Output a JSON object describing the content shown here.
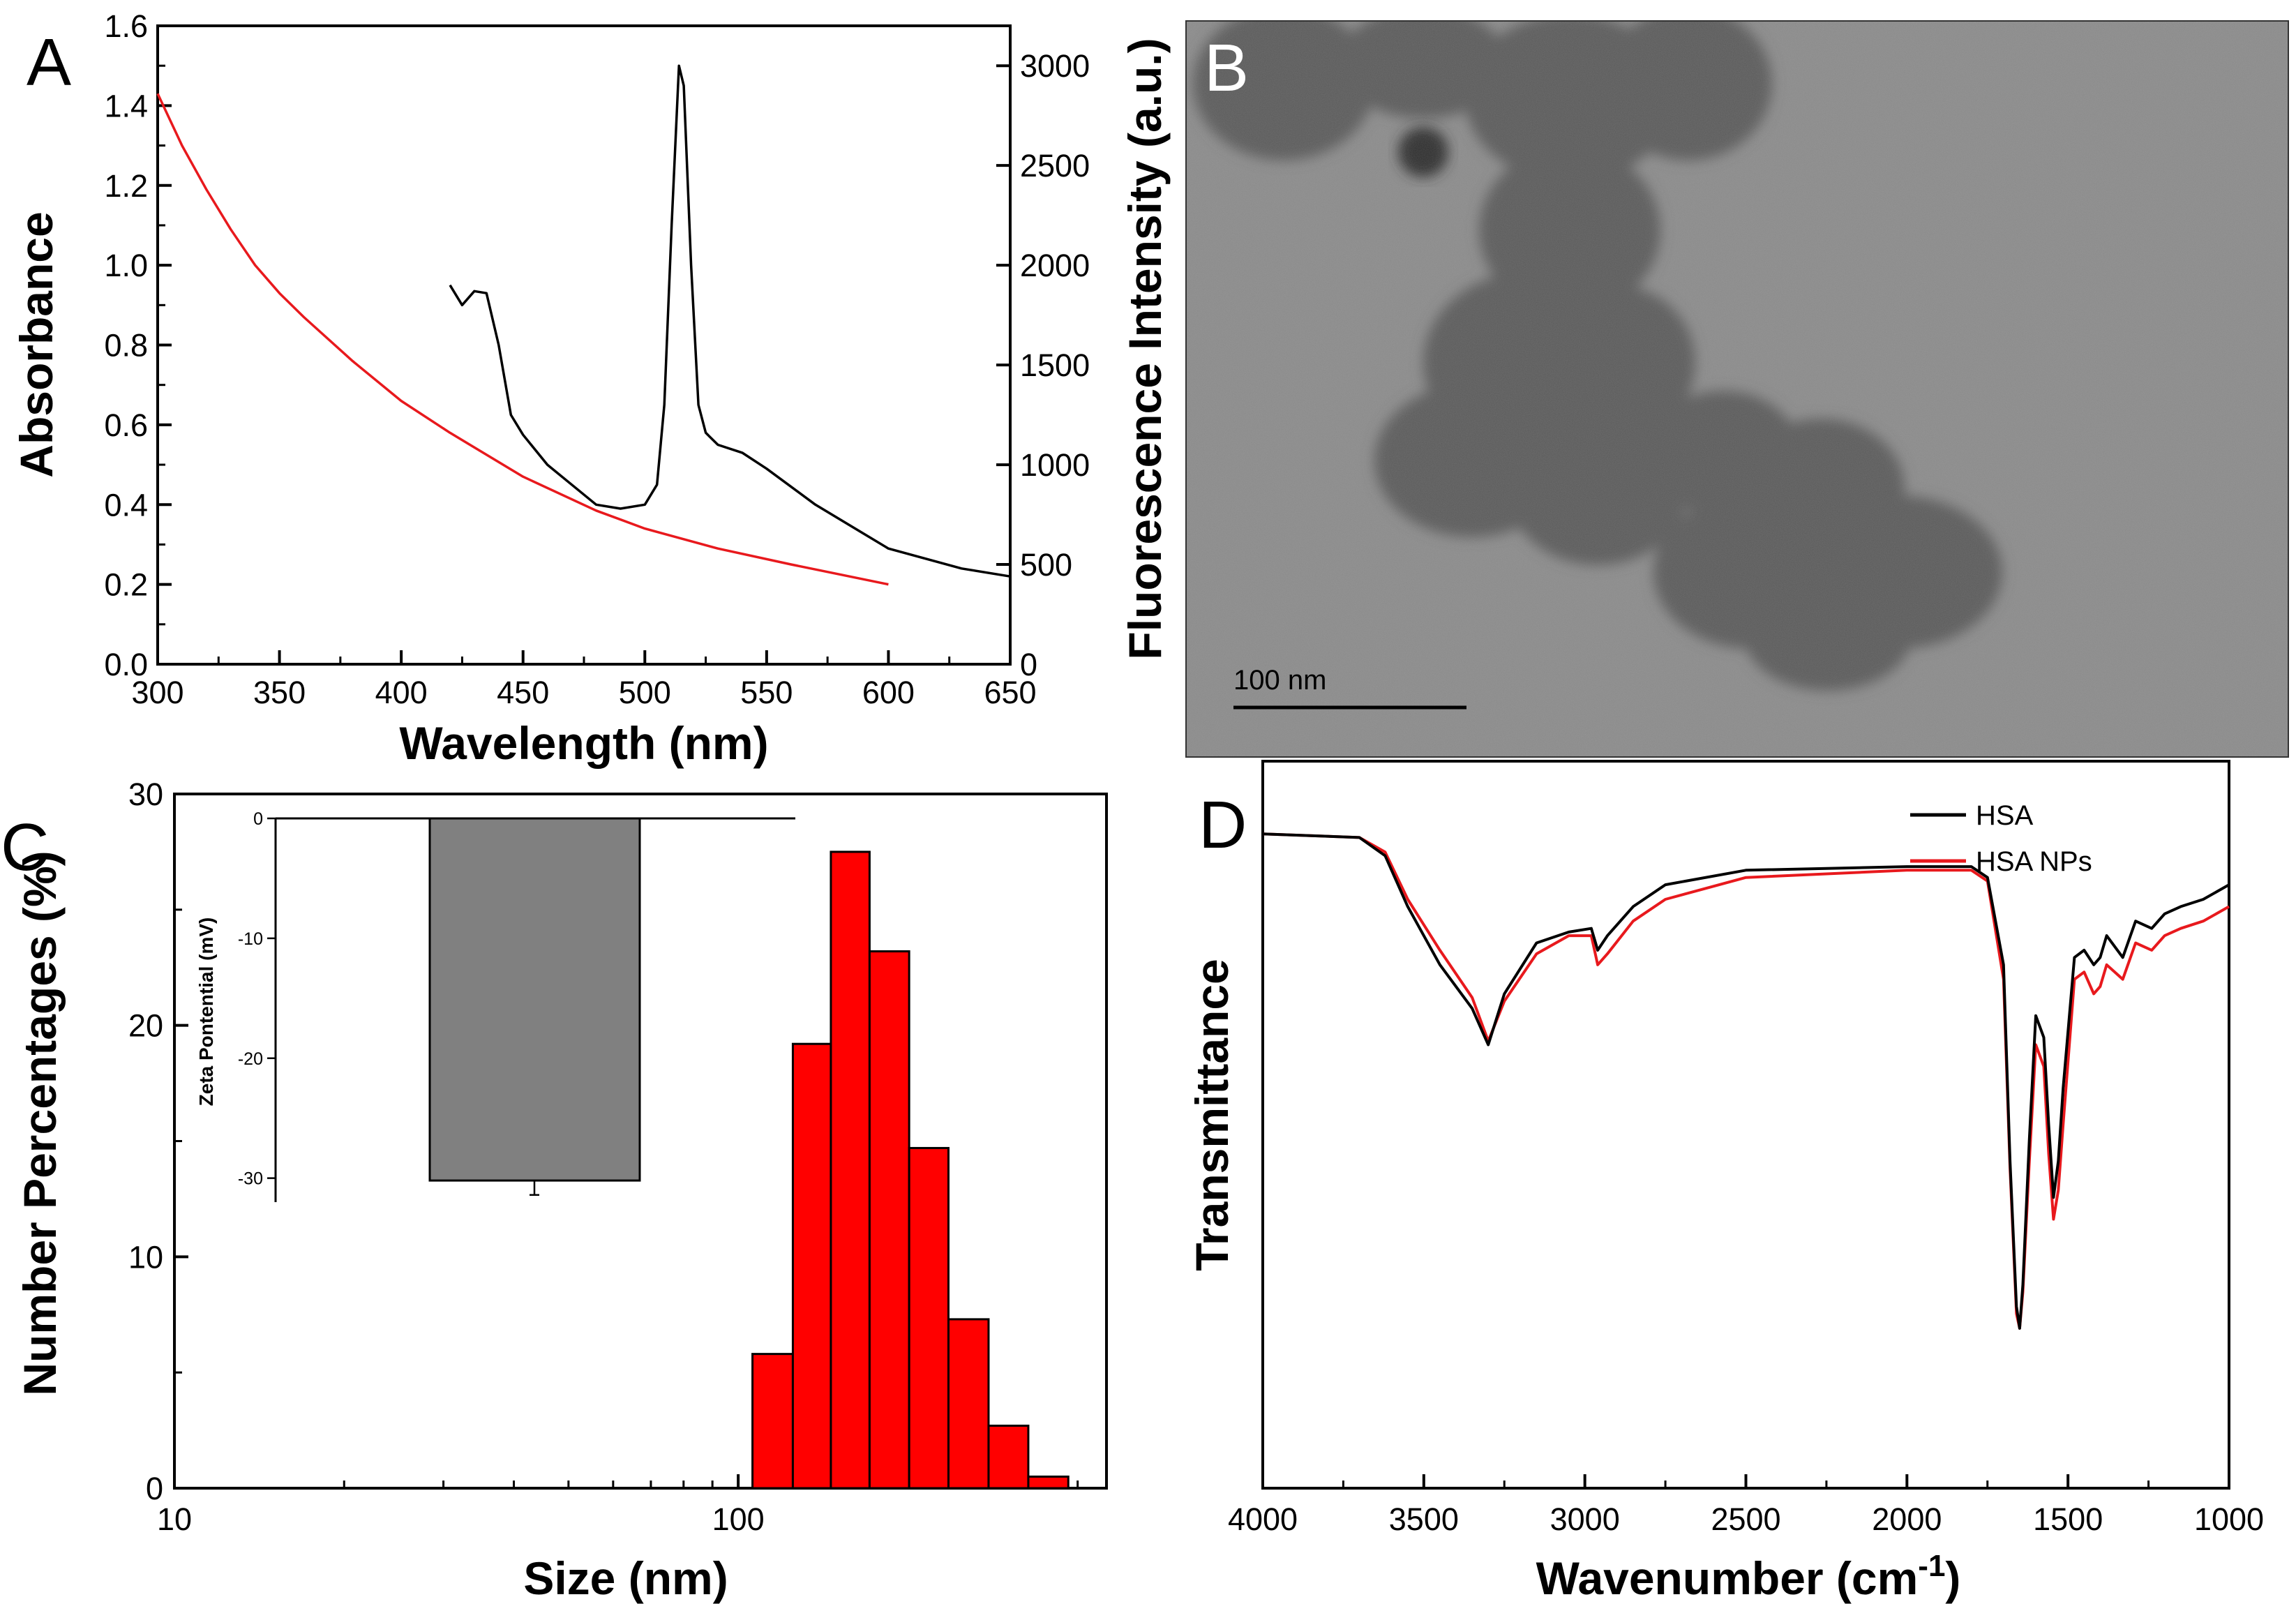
{
  "figure": {
    "panel_labels": {
      "a": "A",
      "b": "B",
      "c": "C",
      "d": "D"
    },
    "tem_scale_label": "100 nm"
  },
  "chart_data": [
    {
      "panel": "A",
      "type": "line",
      "xlabel": "Wavelength (nm)",
      "ylabel": "Absorbance",
      "y2label": "Fluorescence Intensity (a.u.)",
      "xlim": [
        300,
        650
      ],
      "ylim": [
        0,
        1.6
      ],
      "y2lim": [
        0,
        3200
      ],
      "xticks": [
        "300",
        "350",
        "400",
        "450",
        "500",
        "550",
        "600",
        "650"
      ],
      "yticks": [
        "0.0",
        "0.2",
        "0.4",
        "0.6",
        "0.8",
        "1.0",
        "1.2",
        "1.4",
        "1.6"
      ],
      "y2ticks": [
        "0",
        "500",
        "1000",
        "1500",
        "2000",
        "2500",
        "3000"
      ],
      "series": [
        {
          "name": "Absorbance",
          "axis": "left",
          "color": "#e8191d",
          "x": [
            300,
            310,
            320,
            330,
            340,
            350,
            360,
            380,
            400,
            420,
            450,
            480,
            500,
            530,
            560,
            600
          ],
          "y": [
            1.43,
            1.3,
            1.19,
            1.09,
            1.0,
            0.93,
            0.87,
            0.76,
            0.66,
            0.58,
            0.47,
            0.385,
            0.34,
            0.29,
            0.25,
            0.2
          ]
        },
        {
          "name": "Fluorescence",
          "axis": "right",
          "color": "#000000",
          "x": [
            420,
            425,
            430,
            435,
            440,
            445,
            450,
            460,
            470,
            480,
            490,
            500,
            505,
            508,
            511,
            514,
            516,
            519,
            522,
            525,
            530,
            540,
            550,
            570,
            600,
            630,
            650
          ],
          "y": [
            1900,
            1800,
            1870,
            1860,
            1600,
            1250,
            1150,
            1000,
            900,
            800,
            780,
            800,
            900,
            1300,
            2200,
            3000,
            2900,
            2000,
            1300,
            1160,
            1100,
            1060,
            980,
            800,
            580,
            480,
            440
          ]
        }
      ]
    },
    {
      "panel": "C",
      "type": "bar",
      "xlabel": "Size (nm)",
      "ylabel": "Number Percentages (%)",
      "xscale": "log",
      "xlim": [
        10,
        450
      ],
      "ylim": [
        0,
        30
      ],
      "xticks": [
        "10",
        "100"
      ],
      "yticks": [
        "0",
        "10",
        "20",
        "30"
      ],
      "bar_color": "#ff0000",
      "bins": [
        {
          "x0": 106,
          "x1": 125,
          "value": 5.8
        },
        {
          "x0": 125,
          "x1": 146,
          "value": 19.2
        },
        {
          "x0": 146,
          "x1": 171,
          "value": 27.5
        },
        {
          "x0": 171,
          "x1": 201,
          "value": 23.2
        },
        {
          "x0": 201,
          "x1": 236,
          "value": 14.7
        },
        {
          "x0": 236,
          "x1": 278,
          "value": 7.3
        },
        {
          "x0": 278,
          "x1": 327,
          "value": 2.7
        },
        {
          "x0": 327,
          "x1": 385,
          "value": 0.5
        }
      ],
      "inset": {
        "type": "bar",
        "ylabel": "Zeta Pontential (mV)",
        "ylim": [
          -32,
          0
        ],
        "yticks": [
          "0",
          "-10",
          "-20",
          "-30"
        ],
        "value": -30.2,
        "error": 1.2,
        "bar_color": "#808080"
      }
    },
    {
      "panel": "D",
      "type": "line",
      "xlabel": "Wavenumber (cm",
      "xlabel_sup": "-1",
      "xlabel_tail": ")",
      "ylabel": "Transmittance",
      "xlim": [
        4000,
        1000
      ],
      "x_reversed": true,
      "ylim": [
        0,
        1
      ],
      "xticks": [
        "4000",
        "3500",
        "3000",
        "2500",
        "2000",
        "1500",
        "1000"
      ],
      "legend": "top-right",
      "series": [
        {
          "name": "HSA",
          "color": "#000000",
          "x": [
            4000,
            3700,
            3620,
            3550,
            3450,
            3350,
            3300,
            3250,
            3150,
            3050,
            2980,
            2960,
            2930,
            2850,
            2750,
            2500,
            2000,
            1800,
            1750,
            1700,
            1680,
            1660,
            1650,
            1640,
            1620,
            1600,
            1575,
            1560,
            1545,
            1530,
            1515,
            1480,
            1450,
            1420,
            1400,
            1380,
            1330,
            1290,
            1240,
            1200,
            1150,
            1080,
            1000
          ],
          "y": [
            0.9,
            0.895,
            0.87,
            0.8,
            0.72,
            0.66,
            0.61,
            0.68,
            0.75,
            0.765,
            0.77,
            0.74,
            0.76,
            0.8,
            0.83,
            0.85,
            0.855,
            0.855,
            0.84,
            0.72,
            0.45,
            0.25,
            0.22,
            0.28,
            0.48,
            0.65,
            0.62,
            0.5,
            0.4,
            0.45,
            0.55,
            0.73,
            0.74,
            0.72,
            0.73,
            0.76,
            0.73,
            0.78,
            0.77,
            0.79,
            0.8,
            0.81,
            0.83
          ]
        },
        {
          "name": "HSA NPs",
          "color": "#e8191d",
          "x": [
            4000,
            3700,
            3620,
            3550,
            3450,
            3350,
            3300,
            3250,
            3150,
            3050,
            2980,
            2960,
            2930,
            2850,
            2750,
            2500,
            2000,
            1800,
            1750,
            1700,
            1680,
            1660,
            1650,
            1640,
            1620,
            1600,
            1575,
            1560,
            1545,
            1530,
            1515,
            1480,
            1450,
            1420,
            1400,
            1380,
            1330,
            1290,
            1240,
            1200,
            1150,
            1080,
            1000
          ],
          "y": [
            0.9,
            0.895,
            0.875,
            0.81,
            0.74,
            0.675,
            0.615,
            0.67,
            0.735,
            0.76,
            0.76,
            0.72,
            0.735,
            0.78,
            0.81,
            0.84,
            0.85,
            0.85,
            0.835,
            0.7,
            0.44,
            0.24,
            0.22,
            0.27,
            0.45,
            0.61,
            0.58,
            0.46,
            0.37,
            0.41,
            0.5,
            0.7,
            0.71,
            0.68,
            0.69,
            0.72,
            0.7,
            0.75,
            0.74,
            0.76,
            0.77,
            0.78,
            0.8
          ]
        }
      ]
    }
  ]
}
